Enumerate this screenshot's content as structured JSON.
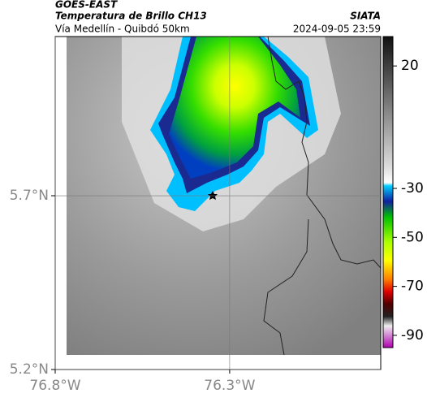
{
  "header": {
    "title": "GOES-EAST",
    "subtitle": "Temperatura de Brillo CH13",
    "region": "Vía Medellín - Quibdó 50km",
    "source": "SIATA",
    "datetime": "2024-09-05 23:59"
  },
  "map": {
    "xlim": [
      -76.8,
      -75.867
    ],
    "ylim": [
      5.2,
      6.158
    ],
    "xticks": [
      {
        "value": -76.8,
        "label": "76.8°W"
      },
      {
        "value": -76.3,
        "label": "76.3°W"
      }
    ],
    "yticks": [
      {
        "value": 5.2,
        "label": "5.2°N"
      },
      {
        "value": 5.7,
        "label": "5.7°N"
      }
    ],
    "grid": true
  },
  "colorbar": {
    "lim": [
      -95,
      32
    ],
    "ticks": [
      20,
      -30,
      -50,
      -70,
      -90
    ]
  }
}
